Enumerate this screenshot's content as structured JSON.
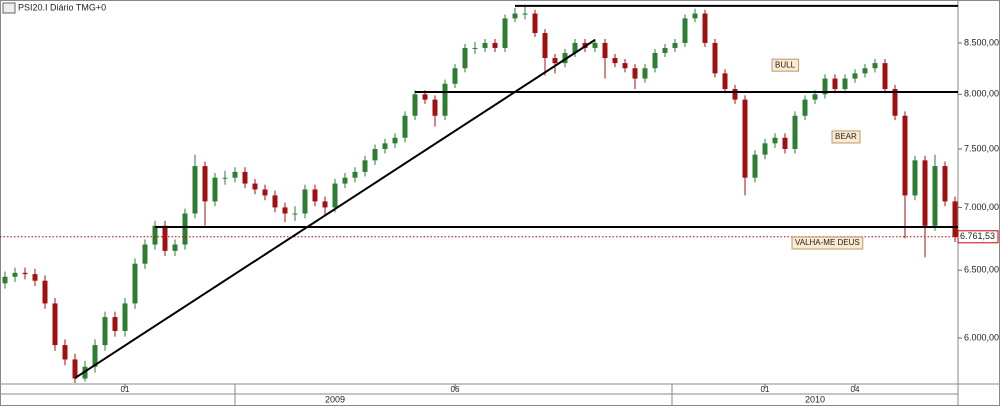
{
  "chart_data": {
    "type": "candlestick",
    "title": "PSI20.I Diário TMG+0",
    "log_scale": true,
    "grid": false,
    "up_color": "#2e7d32",
    "down_color": "#a01010",
    "categories": [
      null,
      null,
      null,
      null,
      null,
      null,
      null,
      null,
      null,
      null,
      null,
      null,
      "01",
      null,
      null,
      null,
      null,
      null,
      null,
      null,
      null,
      null,
      null,
      null,
      null,
      null,
      null,
      null,
      null,
      null,
      null,
      null,
      null,
      null,
      null,
      null,
      null,
      null,
      null,
      null,
      null,
      null,
      null,
      null,
      null,
      "06",
      null,
      null,
      null,
      null,
      null,
      null,
      null,
      null,
      null,
      null,
      null,
      null,
      null,
      null,
      null,
      null,
      null,
      null,
      null,
      null,
      null,
      null,
      null,
      null,
      null,
      null,
      null,
      null,
      null,
      null,
      "01",
      null,
      null,
      null,
      null,
      null,
      null,
      null,
      null,
      "04",
      null,
      null,
      null,
      null,
      null,
      null,
      null,
      null,
      null,
      null
    ],
    "year_labels": [
      "2009",
      "2010"
    ],
    "open": [
      6400,
      6450,
      6480,
      6470,
      6420,
      6250,
      5950,
      5850,
      5720,
      5800,
      5950,
      6150,
      6050,
      6250,
      6550,
      6700,
      6850,
      6650,
      6700,
      6950,
      7350,
      7050,
      7250,
      7250,
      7300,
      7200,
      7150,
      7100,
      7000,
      6950,
      6950,
      7150,
      7050,
      7000,
      7200,
      7250,
      7300,
      7400,
      7500,
      7550,
      7600,
      7800,
      8000,
      7950,
      7800,
      8100,
      8250,
      8450,
      8450,
      8500,
      8450,
      8750,
      8800,
      8800,
      8600,
      8350,
      8300,
      8400,
      8500,
      8450,
      8500,
      8350,
      8300,
      8250,
      8150,
      8250,
      8400,
      8450,
      8500,
      8750,
      8800,
      8500,
      8200,
      8050,
      7950,
      7250,
      7450,
      7550,
      7600,
      7500,
      7800,
      7950,
      8000,
      8150,
      8050,
      8150,
      8200,
      8250,
      8300,
      8050,
      7800,
      7100,
      7400,
      6850,
      7350,
      7050
    ],
    "high": [
      6490,
      6520,
      6520,
      6510,
      6460,
      6290,
      5990,
      5890,
      5840,
      5990,
      6190,
      6190,
      6290,
      6590,
      6740,
      6890,
      6890,
      6740,
      6990,
      7450,
      7390,
      7290,
      7310,
      7340,
      7340,
      7240,
      7190,
      7140,
      7040,
      7010,
      7190,
      7190,
      7090,
      7240,
      7290,
      7340,
      7440,
      7540,
      7590,
      7640,
      7840,
      8040,
      8040,
      7990,
      8140,
      8290,
      8490,
      8510,
      8540,
      8540,
      8790,
      8860,
      8870,
      8840,
      8640,
      8390,
      8440,
      8540,
      8540,
      8540,
      8540,
      8390,
      8340,
      8290,
      8290,
      8440,
      8490,
      8540,
      8790,
      8850,
      8840,
      8540,
      8240,
      8090,
      7990,
      7490,
      7590,
      7640,
      7640,
      7840,
      7990,
      8040,
      8190,
      8190,
      8190,
      8240,
      8290,
      8340,
      8340,
      8090,
      7840,
      7440,
      7440,
      7450,
      7390,
      7090
    ],
    "low": [
      6360,
      6410,
      6430,
      6380,
      6210,
      5910,
      5810,
      5690,
      5700,
      5760,
      5910,
      6010,
      6010,
      6210,
      6510,
      6660,
      6610,
      6610,
      6660,
      6910,
      6850,
      7010,
      7190,
      7210,
      7160,
      7110,
      7060,
      6960,
      6880,
      6890,
      6910,
      7010,
      6940,
      6960,
      7160,
      7210,
      7260,
      7360,
      7460,
      7510,
      7560,
      7760,
      7910,
      7700,
      7760,
      8060,
      8210,
      8390,
      8410,
      8410,
      8410,
      8710,
      8740,
      8560,
      8180,
      8200,
      8260,
      8360,
      8410,
      8410,
      8150,
      8260,
      8210,
      8050,
      8110,
      8210,
      8360,
      8410,
      8460,
      8710,
      8460,
      8160,
      8010,
      7910,
      7100,
      7210,
      7410,
      7510,
      7460,
      7460,
      7760,
      7910,
      7960,
      8010,
      8010,
      8110,
      8160,
      8210,
      8010,
      7760,
      6750,
      7060,
      6600,
      6810,
      7010,
      6720
    ],
    "close": [
      6450,
      6480,
      6470,
      6420,
      6250,
      5950,
      5850,
      5720,
      5800,
      5950,
      6150,
      6050,
      6250,
      6550,
      6700,
      6850,
      6650,
      6700,
      6950,
      7350,
      7050,
      7250,
      7250,
      7300,
      7200,
      7150,
      7100,
      7000,
      6950,
      6950,
      7150,
      7050,
      7000,
      7200,
      7250,
      7300,
      7400,
      7500,
      7550,
      7600,
      7800,
      8000,
      7950,
      7800,
      8100,
      8250,
      8450,
      8450,
      8500,
      8450,
      8750,
      8800,
      8800,
      8600,
      8350,
      8300,
      8400,
      8500,
      8450,
      8500,
      8350,
      8300,
      8250,
      8150,
      8250,
      8400,
      8450,
      8500,
      8750,
      8800,
      8500,
      8200,
      8050,
      7950,
      7250,
      7450,
      7550,
      7600,
      7500,
      7800,
      7950,
      8000,
      8150,
      8050,
      8150,
      8200,
      8250,
      8300,
      8050,
      7800,
      7100,
      7400,
      6850,
      7350,
      7050,
      6761.53
    ],
    "ylim": [
      5683,
      8942
    ],
    "yticks": [
      {
        "value": 6000,
        "label": "6.000,00"
      },
      {
        "value": 6500,
        "label": "6.500,00"
      },
      {
        "value": 7000,
        "label": "7.000,00"
      },
      {
        "value": 7500,
        "label": "7.500,00"
      },
      {
        "value": 8000,
        "label": "8.000,00"
      },
      {
        "value": 8500,
        "label": "8.500,00"
      }
    ],
    "last_price": {
      "value": 6761.53,
      "label": "6.761,53"
    },
    "hlines": [
      {
        "value": 8880,
        "start": 51,
        "end": 95
      },
      {
        "value": 8022,
        "start": 41,
        "end": 95
      },
      {
        "value": 6840,
        "start": 15,
        "end": 95
      }
    ],
    "trendlines": [
      {
        "start": [
          7,
          5723
        ],
        "end": [
          59,
          8531
        ]
      }
    ],
    "annotations": [
      {
        "text": "BULL",
        "index": 77,
        "value": 8280
      },
      {
        "text": "BEAR",
        "index": 83,
        "value": 7607
      },
      {
        "text": "VALHA-ME DEUS",
        "index": 79,
        "value": 6712
      }
    ]
  }
}
